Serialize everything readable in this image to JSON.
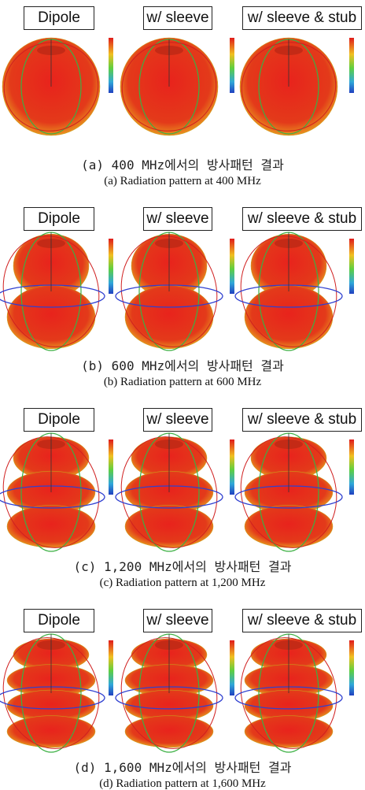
{
  "figure": {
    "rows": [
      {
        "panels": [
          "Dipole",
          "w/ sleeve",
          "w/ sleeve & stub"
        ],
        "caption_ko": "(a) 400 MHz에서의 방사패턴 결과",
        "caption_en": "(a) Radiation pattern at 400 MHz"
      },
      {
        "panels": [
          "Dipole",
          "w/ sleeve",
          "w/ sleeve & stub"
        ],
        "caption_ko": "(b) 600 MHz에서의 방사패턴 결과",
        "caption_en": "(b) Radiation pattern at 600 MHz"
      },
      {
        "panels": [
          "Dipole",
          "w/ sleeve",
          "w/ sleeve & stub"
        ],
        "caption_ko": "(c) 1,200 MHz에서의 방사패턴 결과",
        "caption_en": "(c) Radiation pattern at 1,200 MHz"
      },
      {
        "panels": [
          "Dipole",
          "w/ sleeve",
          "w/ sleeve & stub"
        ],
        "caption_ko": "(d) 1,600 MHz에서의 방사패턴 결과",
        "caption_en": "(d) Radiation pattern at 1,600 MHz"
      }
    ]
  }
}
